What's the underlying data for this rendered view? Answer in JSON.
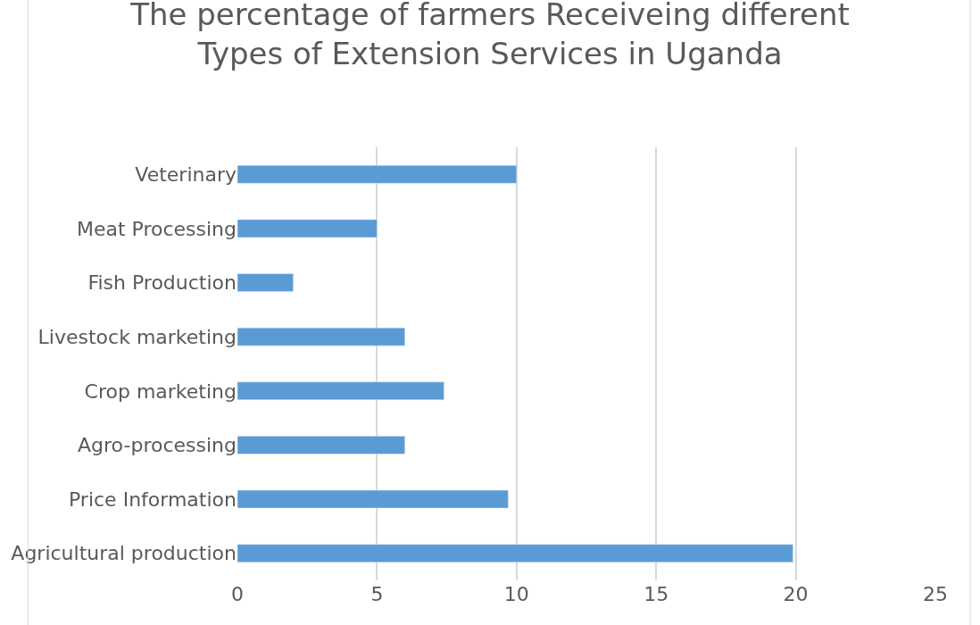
{
  "chart_data": {
    "type": "bar",
    "orientation": "horizontal",
    "title": "The percentage of farmers Receiveing different\nTypes of Extension Services in Uganda",
    "categories": [
      "Veterinary",
      "Meat Processing",
      "Fish Production",
      "Livestock marketing",
      "Crop marketing",
      "Agro-processing",
      "Price Information",
      "Agricultural production"
    ],
    "values": [
      10.0,
      5.0,
      2.0,
      6.0,
      7.4,
      6.0,
      9.7,
      19.9
    ],
    "color": "#5b9bd5",
    "xlim": [
      0,
      25
    ],
    "xticks": [
      0,
      5,
      10,
      15,
      20,
      25
    ],
    "grid": "x",
    "legend": false
  }
}
